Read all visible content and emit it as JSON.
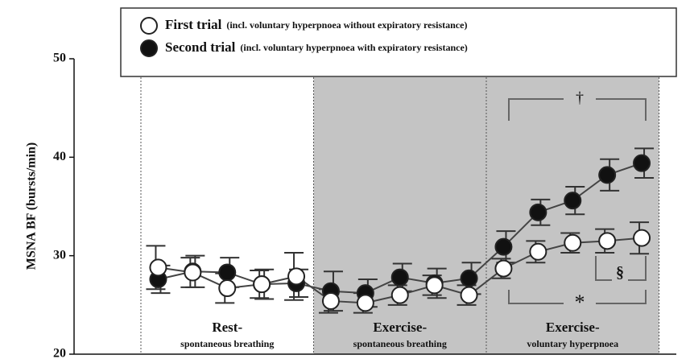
{
  "chart_data": {
    "type": "line",
    "y_label": "MSNA BF (bursts/min)",
    "categories": [
      null,
      null,
      null,
      null,
      null,
      null,
      null,
      null,
      null,
      null,
      null,
      null,
      null,
      null,
      null
    ],
    "series": [
      {
        "name": "First trial",
        "description": "(incl. voluntary hyperpnoea without expiratory resistance)",
        "color": "#ffffff",
        "values": [
          28.8,
          28.3,
          26.7,
          27.1,
          27.9,
          25.4,
          25.2,
          26.0,
          27.0,
          26.0,
          28.7,
          30.4,
          31.3,
          31.5,
          31.8
        ],
        "errors": [
          2.2,
          1.5,
          1.5,
          1.4,
          2.4,
          1.2,
          1.0,
          1.0,
          1.0,
          1.0,
          1.0,
          1.1,
          1.0,
          1.2,
          1.6
        ]
      },
      {
        "name": "Second trial",
        "description": "(incl. voluntary hyperpnoea with expiratory resistance)",
        "color": "#111111",
        "values": [
          27.6,
          28.4,
          28.3,
          27.1,
          27.2,
          26.4,
          26.2,
          27.8,
          27.2,
          27.7,
          30.9,
          34.4,
          35.6,
          38.2,
          39.4
        ],
        "errors": [
          1.4,
          1.6,
          1.5,
          1.5,
          1.4,
          2.0,
          1.4,
          1.4,
          1.5,
          1.6,
          1.6,
          1.3,
          1.4,
          1.6,
          1.5
        ]
      }
    ],
    "regions": [
      {
        "label": "Rest-",
        "sublabel": "spontaneous breathing",
        "shaded": false
      },
      {
        "label": "Exercise-",
        "sublabel": "spontaneous breathing",
        "shaded": true
      },
      {
        "label": "Exercise-",
        "sublabel": "voluntary hyperpnoea",
        "shaded": true
      }
    ],
    "shade_color": "#c4c4c4",
    "annotations": [
      "†",
      "§",
      "*"
    ],
    "ylim": [
      20,
      50
    ],
    "yticks": [
      20,
      30,
      40,
      50
    ]
  }
}
